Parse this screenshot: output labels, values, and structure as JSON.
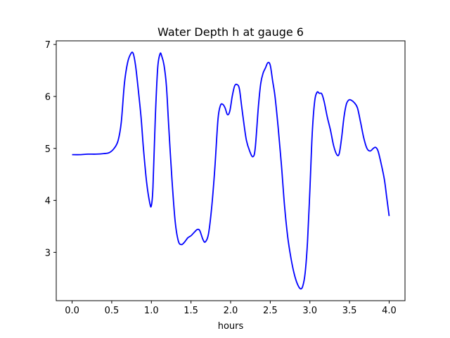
{
  "chart_data": {
    "type": "line",
    "title": "Water Depth h at gauge 6",
    "xlabel": "hours",
    "ylabel": "",
    "xlim": [
      -0.2,
      4.2
    ],
    "ylim": [
      2.07,
      7.07
    ],
    "xticks": [
      0.0,
      0.5,
      1.0,
      1.5,
      2.0,
      2.5,
      3.0,
      3.5,
      4.0
    ],
    "xtick_labels": [
      "0.0",
      "0.5",
      "1.0",
      "1.5",
      "2.0",
      "2.5",
      "3.0",
      "3.5",
      "4.0"
    ],
    "yticks": [
      3,
      4,
      5,
      6,
      7
    ],
    "ytick_labels": [
      "3",
      "4",
      "5",
      "6",
      "7"
    ],
    "grid": false,
    "series": [
      {
        "color": "#0000ff",
        "x": [
          0.0,
          0.1,
          0.2,
          0.3,
          0.4,
          0.47,
          0.53,
          0.58,
          0.62,
          0.66,
          0.7,
          0.74,
          0.77,
          0.8,
          0.83,
          0.87,
          0.9,
          0.94,
          0.98,
          1.0,
          1.02,
          1.05,
          1.08,
          1.11,
          1.13,
          1.16,
          1.19,
          1.22,
          1.26,
          1.3,
          1.34,
          1.38,
          1.42,
          1.46,
          1.5,
          1.55,
          1.58,
          1.61,
          1.65,
          1.68,
          1.72,
          1.76,
          1.8,
          1.84,
          1.87,
          1.9,
          1.93,
          1.96,
          1.99,
          2.02,
          2.05,
          2.08,
          2.11,
          2.14,
          2.17,
          2.2,
          2.24,
          2.28,
          2.31,
          2.35,
          2.38,
          2.41,
          2.44,
          2.47,
          2.5,
          2.53,
          2.56,
          2.6,
          2.64,
          2.68,
          2.72,
          2.76,
          2.8,
          2.84,
          2.88,
          2.91,
          2.94,
          2.97,
          3.0,
          3.03,
          3.06,
          3.09,
          3.12,
          3.15,
          3.18,
          3.22,
          3.26,
          3.3,
          3.34,
          3.37,
          3.4,
          3.43,
          3.46,
          3.49,
          3.52,
          3.56,
          3.6,
          3.64,
          3.68,
          3.72,
          3.76,
          3.8,
          3.83,
          3.86,
          3.9,
          3.94,
          3.97,
          4.0
        ],
        "y": [
          4.88,
          4.88,
          4.89,
          4.89,
          4.9,
          4.92,
          5.0,
          5.15,
          5.5,
          6.25,
          6.65,
          6.82,
          6.83,
          6.6,
          6.2,
          5.6,
          5.0,
          4.35,
          3.95,
          3.9,
          4.25,
          5.6,
          6.55,
          6.82,
          6.78,
          6.6,
          6.2,
          5.4,
          4.4,
          3.6,
          3.22,
          3.15,
          3.2,
          3.28,
          3.32,
          3.4,
          3.44,
          3.42,
          3.25,
          3.2,
          3.35,
          3.85,
          4.6,
          5.55,
          5.82,
          5.85,
          5.78,
          5.65,
          5.72,
          6.0,
          6.2,
          6.23,
          6.15,
          5.8,
          5.45,
          5.15,
          4.95,
          4.84,
          5.0,
          5.8,
          6.25,
          6.45,
          6.55,
          6.65,
          6.6,
          6.3,
          6.0,
          5.4,
          4.7,
          3.9,
          3.3,
          2.9,
          2.6,
          2.4,
          2.3,
          2.35,
          2.6,
          3.2,
          4.2,
          5.3,
          5.9,
          6.08,
          6.06,
          6.05,
          5.9,
          5.6,
          5.35,
          5.05,
          4.88,
          4.9,
          5.2,
          5.6,
          5.85,
          5.93,
          5.93,
          5.88,
          5.78,
          5.5,
          5.2,
          5.0,
          4.95,
          5.0,
          5.02,
          4.95,
          4.7,
          4.4,
          4.05,
          3.7
        ]
      }
    ]
  }
}
